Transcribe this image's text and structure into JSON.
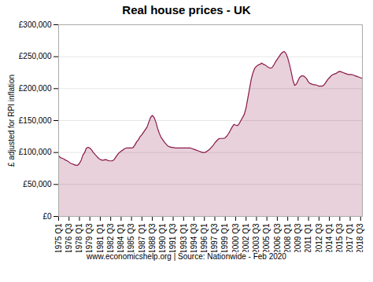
{
  "chart_data": {
    "type": "area",
    "title": "Real house prices - UK",
    "ylabel": "£ adjusted for RPI inflation",
    "caption": "www.economicshelp.org | Source: Nationwide - Feb 2020",
    "color": "#8B1A4A",
    "grid": true,
    "ylim": [
      0,
      300000
    ],
    "yticks": [
      {
        "value": 0,
        "label": "£0"
      },
      {
        "value": 50000,
        "label": "£50,000"
      },
      {
        "value": 100000,
        "label": "£100,000"
      },
      {
        "value": 150000,
        "label": "£150,000"
      },
      {
        "value": 200000,
        "label": "£200,000"
      },
      {
        "value": 250000,
        "label": "£250,000"
      },
      {
        "value": 300000,
        "label": "£300,000"
      }
    ],
    "categories": [
      "1975 Q1",
      null,
      null,
      null,
      null,
      null,
      "1976 Q3",
      null,
      null,
      null,
      null,
      null,
      "1978 Q1",
      null,
      null,
      null,
      null,
      null,
      "1979 Q3",
      null,
      null,
      null,
      null,
      null,
      "1981 Q1",
      null,
      null,
      null,
      null,
      null,
      "1982 Q3",
      null,
      null,
      null,
      null,
      null,
      "1984 Q1",
      null,
      null,
      null,
      null,
      null,
      "1985 Q3",
      null,
      null,
      null,
      null,
      null,
      "1987 Q1",
      null,
      null,
      null,
      null,
      null,
      "1988 Q3",
      null,
      null,
      null,
      null,
      null,
      "1990 Q1",
      null,
      null,
      null,
      null,
      null,
      "1991 Q3",
      null,
      null,
      null,
      null,
      null,
      "1993 Q1",
      null,
      null,
      null,
      null,
      null,
      "1994 Q3",
      null,
      null,
      null,
      null,
      null,
      "1996 Q1",
      null,
      null,
      null,
      null,
      null,
      "1997 Q3",
      null,
      null,
      null,
      null,
      null,
      "1999 Q1",
      null,
      null,
      null,
      null,
      null,
      "2000 Q3",
      null,
      null,
      null,
      null,
      null,
      "2002 Q1",
      null,
      null,
      null,
      null,
      null,
      "2003 Q3",
      null,
      null,
      null,
      null,
      null,
      "2005 Q1",
      null,
      null,
      null,
      null,
      null,
      "2006 Q3",
      null,
      null,
      null,
      null,
      null,
      "2008 Q1",
      null,
      null,
      null,
      null,
      null,
      "2009 Q3",
      null,
      null,
      null,
      null,
      null,
      "2011 Q1",
      null,
      null,
      null,
      null,
      null,
      "2012 Q3",
      null,
      null,
      null,
      null,
      null,
      "2014 Q1",
      null,
      null,
      null,
      null,
      null,
      "2015 Q3",
      null,
      null,
      null,
      null,
      null,
      "2017 Q1",
      null,
      null,
      null,
      null,
      null,
      "2018 Q3",
      null
    ],
    "values": [
      95000,
      92000,
      91000,
      90000,
      88000,
      87000,
      85000,
      83000,
      82000,
      81000,
      80000,
      80000,
      83000,
      88000,
      96000,
      100000,
      107000,
      108000,
      107000,
      104000,
      100000,
      97000,
      94000,
      91000,
      89000,
      88000,
      88000,
      89000,
      88000,
      87000,
      87000,
      87000,
      89000,
      93000,
      97000,
      100000,
      102000,
      104000,
      106000,
      107000,
      107000,
      107000,
      107000,
      108000,
      112000,
      117000,
      120000,
      125000,
      128000,
      132000,
      136000,
      140000,
      148000,
      155000,
      158000,
      155000,
      148000,
      138000,
      130000,
      124000,
      120000,
      116000,
      113000,
      110000,
      109000,
      108000,
      108000,
      107000,
      107000,
      107000,
      107000,
      107000,
      107000,
      107000,
      107000,
      107000,
      107000,
      106000,
      105000,
      104000,
      103000,
      102000,
      101000,
      100000,
      100000,
      101000,
      103000,
      105000,
      108000,
      111000,
      115000,
      118000,
      121000,
      122000,
      122000,
      122000,
      123000,
      126000,
      130000,
      135000,
      140000,
      144000,
      143000,
      142000,
      145000,
      150000,
      155000,
      160000,
      170000,
      185000,
      200000,
      215000,
      225000,
      232000,
      235000,
      237000,
      238000,
      240000,
      238000,
      237000,
      235000,
      233000,
      232000,
      233000,
      237000,
      242000,
      246000,
      250000,
      254000,
      257000,
      258000,
      255000,
      248000,
      238000,
      226000,
      213000,
      205000,
      207000,
      213000,
      218000,
      220000,
      220000,
      218000,
      215000,
      210000,
      208000,
      207000,
      206000,
      206000,
      205000,
      204000,
      204000,
      204000,
      206000,
      210000,
      214000,
      217000,
      220000,
      222000,
      223000,
      224000,
      226000,
      227000,
      226000,
      225000,
      224000,
      223000,
      222000,
      222000,
      222000,
      221000,
      220000,
      219000,
      218000,
      217000,
      216000
    ]
  }
}
